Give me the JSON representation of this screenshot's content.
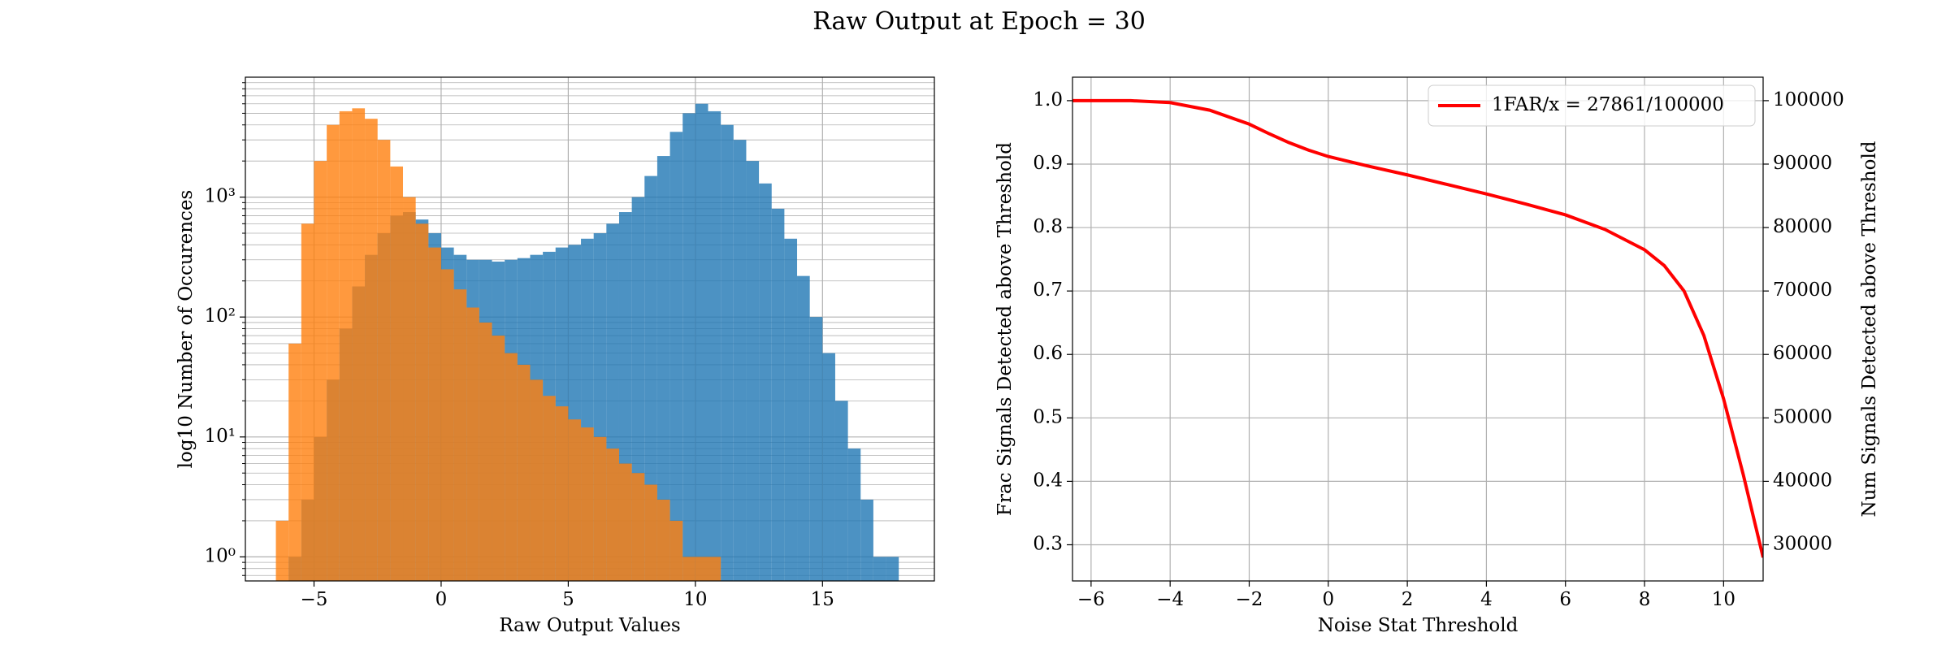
{
  "title": "Raw Output at Epoch = 30",
  "chart_data": [
    {
      "type": "histogram",
      "xlabel": "Raw Output Values",
      "ylabel": "log10 Number of Occurences",
      "bins": [
        -6.5,
        -6.0,
        -5.5,
        -5.0,
        -4.5,
        -4.0,
        -3.5,
        -3.0,
        -2.5,
        -2.0,
        -1.5,
        -1.0,
        -0.5,
        0.0,
        0.5,
        1.0,
        1.5,
        2.0,
        2.5,
        3.0,
        3.5,
        4.0,
        4.5,
        5.0,
        5.5,
        6.0,
        6.5,
        7.0,
        7.5,
        8.0,
        8.5,
        9.0,
        9.5,
        10.0,
        10.5,
        11.0,
        11.5,
        12.0,
        12.5,
        13.0,
        13.5,
        14.0,
        14.5,
        15.0,
        15.5,
        16.0,
        16.5,
        17.0,
        17.5,
        18.0
      ],
      "series": [
        {
          "color": "#1f77b4",
          "values": [
            0,
            1,
            3,
            10,
            30,
            80,
            180,
            330,
            500,
            700,
            750,
            650,
            500,
            380,
            330,
            300,
            300,
            290,
            300,
            310,
            330,
            350,
            380,
            400,
            450,
            500,
            600,
            750,
            1000,
            1500,
            2200,
            3500,
            5000,
            6000,
            5200,
            4000,
            3000,
            2000,
            1300,
            800,
            450,
            220,
            100,
            50,
            20,
            8,
            3,
            1,
            1
          ]
        },
        {
          "color": "#ff7f0e",
          "values": [
            2,
            60,
            600,
            2000,
            4000,
            5200,
            5500,
            4500,
            3000,
            1800,
            1000,
            600,
            380,
            250,
            170,
            120,
            90,
            70,
            50,
            40,
            30,
            22,
            18,
            14,
            12,
            10,
            8,
            6,
            5,
            4,
            3,
            2,
            1,
            1,
            1,
            0,
            0,
            0,
            0,
            0,
            0,
            0,
            0,
            0,
            0,
            0,
            0,
            0,
            0
          ]
        }
      ],
      "opacity": 0.8,
      "xlim": [
        -7.7,
        19.4
      ],
      "xticks": [
        {
          "value": -5,
          "label": "−5"
        },
        0,
        5,
        10,
        15
      ],
      "log_y": true,
      "ylim": [
        0.63,
        10000
      ],
      "yticks": [
        {
          "value": 1,
          "label": "10⁰"
        },
        {
          "value": 10,
          "label": "10¹"
        },
        {
          "value": 100,
          "label": "10²"
        },
        {
          "value": 1000,
          "label": "10³"
        }
      ],
      "yminor_ticks": [
        0.7,
        0.8,
        0.9,
        2,
        3,
        4,
        5,
        6,
        7,
        8,
        9,
        20,
        30,
        40,
        50,
        60,
        70,
        80,
        90,
        200,
        300,
        400,
        500,
        600,
        700,
        800,
        900,
        2000,
        3000,
        4000,
        5000,
        6000,
        7000,
        8000,
        9000
      ],
      "grid": true
    },
    {
      "type": "line",
      "xlabel": "Noise Stat Threshold",
      "ylabel": "Frac Signals Detected above Threshold",
      "y2label": "Num Signals Detected above Threshold",
      "x": [
        -6.47,
        -5,
        -4,
        -3,
        -2,
        -1.5,
        -1,
        -0.5,
        0,
        1,
        2,
        3,
        4,
        5,
        6,
        7,
        8,
        8.5,
        9,
        9.5,
        10,
        10.5,
        11
      ],
      "series": [
        {
          "name": "1FAR/x = 27861/100000",
          "color": "#ff0000",
          "values": [
            1.0,
            1.0,
            0.997,
            0.985,
            0.963,
            0.948,
            0.934,
            0.922,
            0.912,
            0.897,
            0.883,
            0.868,
            0.853,
            0.837,
            0.82,
            0.797,
            0.765,
            0.74,
            0.7,
            0.63,
            0.53,
            0.41,
            0.28
          ]
        }
      ],
      "xlim": [
        -6.47,
        11.0
      ],
      "xticks": [
        {
          "value": -6,
          "label": "−6"
        },
        {
          "value": -4,
          "label": "−4"
        },
        {
          "value": -2,
          "label": "−2"
        },
        0,
        2,
        4,
        6,
        8,
        10
      ],
      "ylim": [
        0.243,
        1.037
      ],
      "yticks": [
        0.3,
        0.4,
        0.5,
        0.6,
        0.7,
        0.8,
        0.9,
        {
          "value": 1,
          "label": "1.0"
        }
      ],
      "y2lim": [
        24300,
        103700
      ],
      "y2ticks": [
        30000,
        40000,
        50000,
        60000,
        70000,
        80000,
        90000,
        100000
      ],
      "legend": "upper right",
      "grid": true
    }
  ]
}
